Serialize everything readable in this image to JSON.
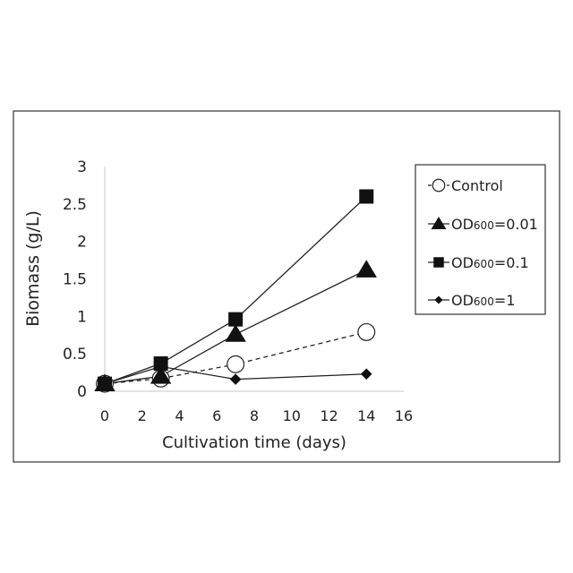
{
  "chart_data": {
    "type": "line",
    "xlabel": "Cultivation time (days)",
    "ylabel": "Biomass (g/L)",
    "xlim": [
      0,
      16
    ],
    "ylim": [
      0,
      3
    ],
    "xticks": [
      "0",
      "2",
      "4",
      "6",
      "8",
      "10",
      "12",
      "14",
      "16"
    ],
    "yticks": [
      "0",
      "0.5",
      "1",
      "1.5",
      "2",
      "2.5",
      "3"
    ],
    "grid": false,
    "legend_position": "right",
    "series": [
      {
        "name": "Control",
        "marker": "open-circle",
        "line_style": "dashed",
        "x": [
          0,
          3,
          7,
          14
        ],
        "y": [
          0.1,
          0.17,
          0.36,
          0.79
        ]
      },
      {
        "name": "OD600=0.01",
        "legend_prefix": "OD",
        "legend_sub": "600",
        "legend_suffix": "=0.01",
        "marker": "filled-triangle",
        "line_style": "solid",
        "x": [
          0,
          3,
          7,
          14
        ],
        "y": [
          0.1,
          0.2,
          0.76,
          1.62
        ]
      },
      {
        "name": "OD600=0.1",
        "legend_prefix": "OD",
        "legend_sub": "600",
        "legend_suffix": "=0.1",
        "marker": "filled-square",
        "line_style": "solid",
        "x": [
          0,
          3,
          7,
          14
        ],
        "y": [
          0.1,
          0.37,
          0.96,
          2.6
        ]
      },
      {
        "name": "OD600=1",
        "legend_prefix": "OD",
        "legend_sub": "600",
        "legend_suffix": "=1",
        "marker": "filled-diamond",
        "line_style": "solid",
        "x": [
          0,
          3,
          7,
          14
        ],
        "y": [
          0.1,
          0.33,
          0.16,
          0.23
        ]
      }
    ]
  }
}
